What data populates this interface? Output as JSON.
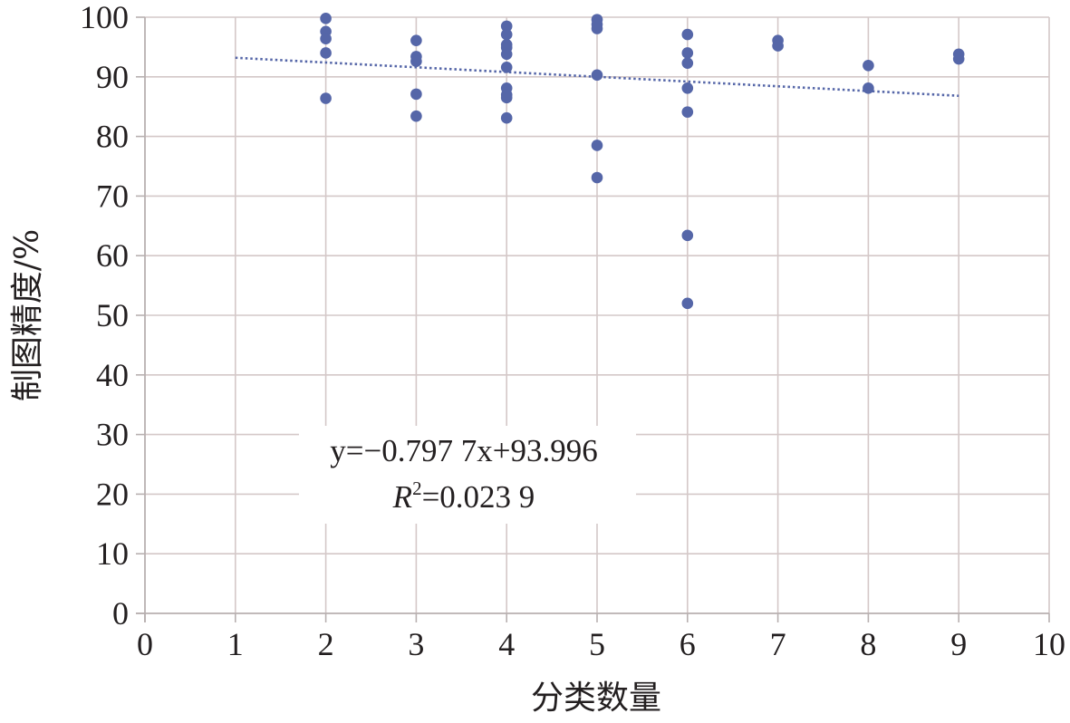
{
  "chart_data": {
    "type": "scatter",
    "xlabel": "分类数量",
    "ylabel": "制图精度/%",
    "xlim": [
      0,
      10
    ],
    "ylim": [
      0,
      100
    ],
    "xticks": [
      "0",
      "1",
      "2",
      "3",
      "4",
      "5",
      "6",
      "7",
      "8",
      "9",
      "10"
    ],
    "yticks": [
      "0",
      "10",
      "20",
      "30",
      "40",
      "50",
      "60",
      "70",
      "80",
      "90",
      "100"
    ],
    "grid": true,
    "colors": {
      "point": "#5566a8",
      "trend": "#5566a8",
      "grid": "#d4c8c8",
      "axis": "#b8b0b0"
    },
    "series": [
      {
        "points": [
          [
            2,
            99.8
          ],
          [
            2,
            97.6
          ],
          [
            2,
            96.4
          ],
          [
            2,
            94.0
          ],
          [
            2,
            86.4
          ],
          [
            3,
            96.1
          ],
          [
            3,
            93.4
          ],
          [
            3,
            92.6
          ],
          [
            3,
            87.1
          ],
          [
            3,
            83.4
          ],
          [
            4,
            98.5
          ],
          [
            4,
            97.1
          ],
          [
            4,
            95.4
          ],
          [
            4,
            94.9
          ],
          [
            4,
            93.8
          ],
          [
            4,
            91.6
          ],
          [
            4,
            88.1
          ],
          [
            4,
            87.0
          ],
          [
            4,
            86.5
          ],
          [
            4,
            83.1
          ],
          [
            5,
            99.6
          ],
          [
            5,
            98.8
          ],
          [
            5,
            98.1
          ],
          [
            5,
            90.3
          ],
          [
            5,
            78.5
          ],
          [
            5,
            73.1
          ],
          [
            6,
            97.1
          ],
          [
            6,
            94.0
          ],
          [
            6,
            92.3
          ],
          [
            6,
            88.1
          ],
          [
            6,
            84.1
          ],
          [
            6,
            63.4
          ],
          [
            6,
            52.0
          ],
          [
            7,
            96.1
          ],
          [
            7,
            95.2
          ],
          [
            8,
            91.9
          ],
          [
            8,
            88.1
          ],
          [
            9,
            93.8
          ],
          [
            9,
            93.0
          ]
        ]
      }
    ],
    "trendline": {
      "slope": -0.7977,
      "intercept": 93.996,
      "x_range": [
        1,
        9
      ]
    },
    "annotation": {
      "equation": "y=−0.797 7x+93.996",
      "r2_label": "R",
      "r2_sup": "2",
      "r2_value": "=0.023 9"
    }
  }
}
